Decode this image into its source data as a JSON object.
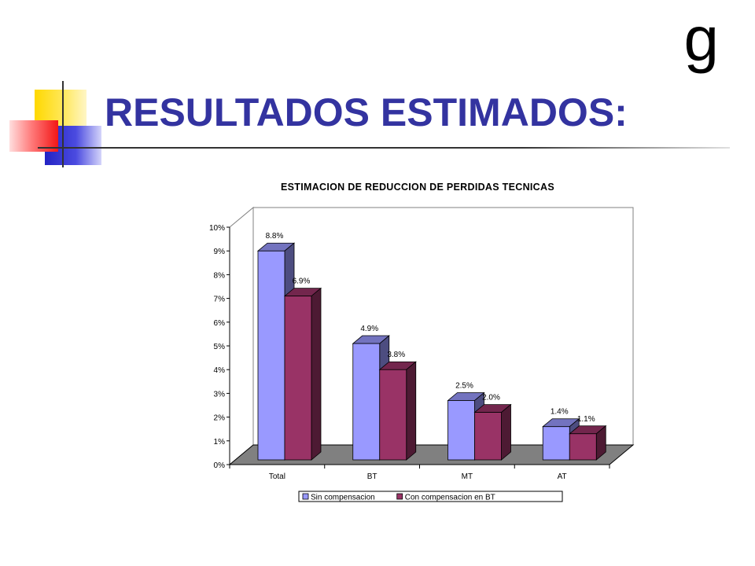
{
  "header": {
    "title": "RESULTADOS ESTIMADOS:",
    "corner_glyph": "g"
  },
  "colors": {
    "title": "#3333a0",
    "series_1": "#9999ff",
    "series_2": "#993366",
    "floor": "#808080"
  },
  "chart_data": {
    "type": "bar",
    "title": "ESTIMACION DE REDUCCION DE PERDIDAS TECNICAS",
    "categories": [
      "Total",
      "BT",
      "MT",
      "AT"
    ],
    "series": [
      {
        "name": "Sin compensacion",
        "values": [
          8.8,
          4.9,
          2.5,
          1.4
        ],
        "labels": [
          "8.8%",
          "4.9%",
          "2.5%",
          "1.4%"
        ]
      },
      {
        "name": "Con compensacion en BT",
        "values": [
          6.9,
          3.8,
          2.0,
          1.1
        ],
        "labels": [
          "6.9%",
          "3.8%",
          "2.0%",
          "1.1%"
        ]
      }
    ],
    "ylim": [
      0,
      10
    ],
    "yticks": [
      "0%",
      "1%",
      "2%",
      "3%",
      "4%",
      "5%",
      "6%",
      "7%",
      "8%",
      "9%",
      "10%"
    ],
    "legend": "bottom",
    "grid": false,
    "three_d": true
  }
}
